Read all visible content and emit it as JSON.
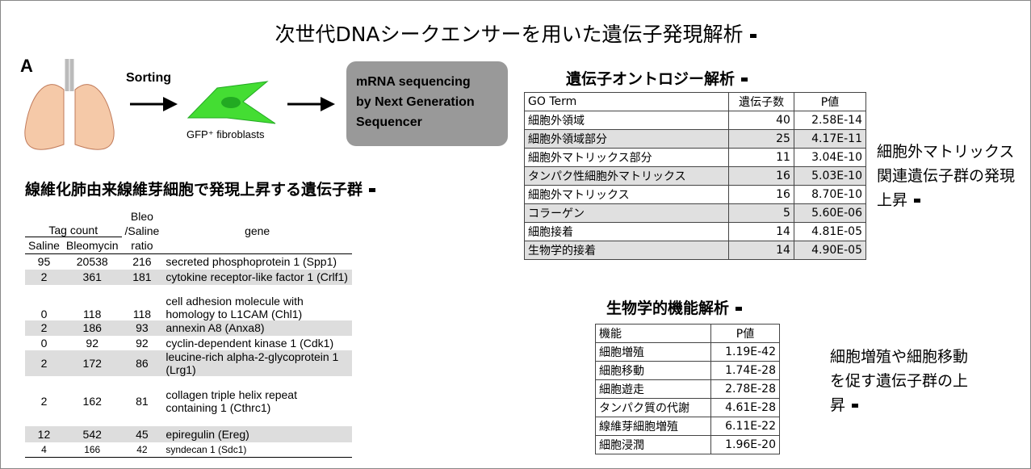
{
  "header": {
    "title": "次世代DNAシークエンサーを用いた遺伝子発現解析"
  },
  "diagram": {
    "label": "A",
    "step": "Sorting",
    "cell": "GFP⁺ fibroblasts",
    "result": [
      "mRNA sequencing",
      "by Next Generation",
      "Sequencer"
    ]
  },
  "gene_table": {
    "title": "線維化肺由来線維芽細胞で発現上昇する遺伝子群",
    "group_header": "Tag count",
    "ratio_header": [
      "Bleo",
      "/Saline",
      "ratio"
    ],
    "gene_header": "gene",
    "sub_headers": [
      "Saline",
      "Bleomycin"
    ],
    "rows": [
      [
        95,
        20538,
        216,
        "secreted phosphoprotein 1 (Spp1)"
      ],
      [
        2,
        361,
        181,
        "cytokine receptor-like factor 1 (Crlf1)"
      ],
      [
        0,
        118,
        118,
        "cell adhesion molecule with homology to L1CAM (Chl1)"
      ],
      [
        2,
        186,
        93,
        "annexin A8 (Anxa8)"
      ],
      [
        0,
        92,
        92,
        "cyclin-dependent kinase 1 (Cdk1)"
      ],
      [
        2,
        172,
        86,
        "leucine-rich alpha-2-glycoprotein 1 (Lrg1)"
      ],
      [
        2,
        162,
        81,
        "collagen triple helix repeat containing 1 (Cthrc1)"
      ],
      [
        12,
        542,
        45,
        "epiregulin (Ereg)"
      ],
      [
        4,
        166,
        42,
        "syndecan 1 (Sdc1)"
      ]
    ]
  },
  "go_table": {
    "title": "遺伝子オントロジー解析",
    "headers": [
      "GO Term",
      "遺伝子数",
      "P値"
    ],
    "rows": [
      [
        "細胞外領域",
        40,
        "2.58E-14"
      ],
      [
        "細胞外領域部分",
        25,
        "4.17E-11"
      ],
      [
        "細胞外マトリックス部分",
        11,
        "3.04E-10"
      ],
      [
        "タンパク性細胞外マトリックス",
        16,
        "5.03E-10"
      ],
      [
        "細胞外マトリックス",
        16,
        "8.70E-10"
      ],
      [
        "コラーゲン",
        5,
        "5.60E-06"
      ],
      [
        "細胞接着",
        14,
        "4.81E-05"
      ],
      [
        "生物学的接着",
        14,
        "4.90E-05"
      ]
    ],
    "note": "細胞外マトリックス関連遺伝子群の発現上昇"
  },
  "function_table": {
    "title": "生物学的機能解析",
    "headers": [
      "機能",
      "P値"
    ],
    "rows": [
      [
        "細胞増殖",
        "1.19E-42"
      ],
      [
        "細胞移動",
        "1.74E-28"
      ],
      [
        "細胞遊走",
        "2.78E-28"
      ],
      [
        "タンパク質の代謝",
        "4.61E-28"
      ],
      [
        "線維芽細胞増殖",
        "6.11E-22"
      ],
      [
        "細胞浸潤",
        "1.96E-20"
      ]
    ],
    "note": "細胞増殖や細胞移動を促す遺伝子群の上昇"
  }
}
